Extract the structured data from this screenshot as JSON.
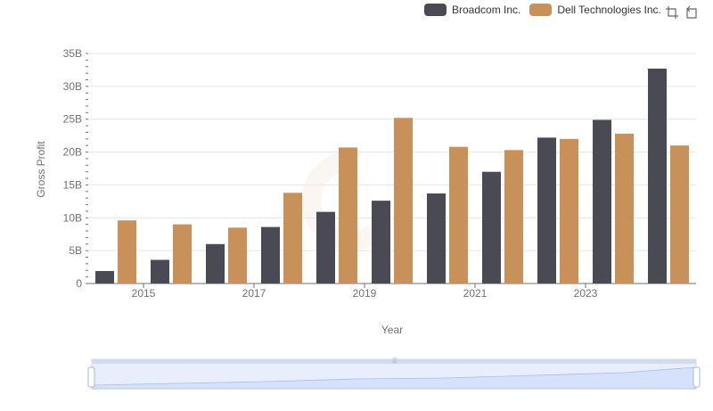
{
  "chart_data": {
    "type": "bar",
    "title": "",
    "xlabel": "Year",
    "ylabel": "Gross Profit",
    "categories": [
      "2014",
      "2015",
      "2016",
      "2017",
      "2018",
      "2019",
      "2020",
      "2021",
      "2022",
      "2023",
      "2024"
    ],
    "x_tick_labels": [
      "2015",
      "2017",
      "2019",
      "2021",
      "2023"
    ],
    "y_tick_labels": [
      "0",
      "5B",
      "10B",
      "15B",
      "20B",
      "25B",
      "30B",
      "35B"
    ],
    "ylim": [
      0,
      35
    ],
    "y_unit": "B",
    "grid": true,
    "legend_position": "top-right",
    "series": [
      {
        "name": "Broadcom Inc.",
        "color": "#4a4a55",
        "values": [
          1.9,
          3.6,
          6.0,
          8.6,
          10.9,
          12.6,
          13.7,
          17.0,
          22.2,
          24.9,
          32.7
        ]
      },
      {
        "name": "Dell Technologies Inc.",
        "color": "#c8915a",
        "values": [
          9.6,
          9.0,
          8.5,
          13.8,
          20.7,
          25.2,
          20.8,
          20.3,
          22.0,
          22.8,
          21.0
        ]
      }
    ]
  },
  "toolbox": {
    "zoom_icon": "zoom-icon",
    "restore_icon": "restore-icon"
  }
}
